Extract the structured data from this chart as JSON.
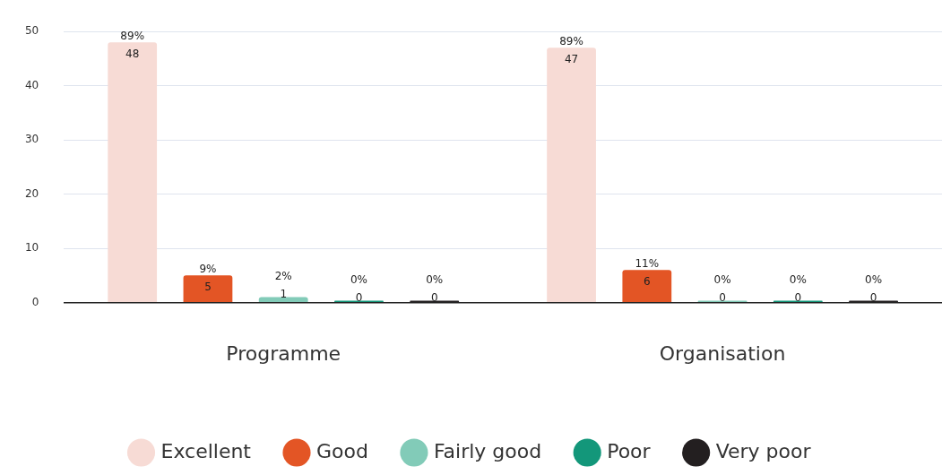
{
  "chart_data": {
    "type": "bar",
    "categories": [
      "Programme",
      "Organisation"
    ],
    "series": [
      {
        "name": "Excellent",
        "color": "#f7dbd5",
        "values": [
          48,
          47
        ],
        "value_labels": [
          "89%\n48",
          "89%\n47"
        ]
      },
      {
        "name": "Good",
        "color": "#e35525",
        "values": [
          5,
          6
        ],
        "value_labels": [
          "9%\n5",
          "11%\n6"
        ]
      },
      {
        "name": "Fairly good",
        "color": "#82cbb8",
        "values": [
          1,
          0
        ],
        "value_labels": [
          "2%\n1",
          "0%\n0"
        ]
      },
      {
        "name": "Poor",
        "color": "#13977a",
        "values": [
          0,
          0
        ],
        "value_labels": [
          "0%\n0",
          "0%\n0"
        ]
      },
      {
        "name": "Very poor",
        "color": "#231f20",
        "values": [
          0,
          0
        ],
        "value_labels": [
          "0%\n0",
          "0%\n0"
        ]
      }
    ],
    "ylim": [
      0,
      50
    ],
    "yticks": [
      0,
      10,
      20,
      30,
      40,
      50
    ],
    "grid": "y",
    "legend": "bottom"
  }
}
